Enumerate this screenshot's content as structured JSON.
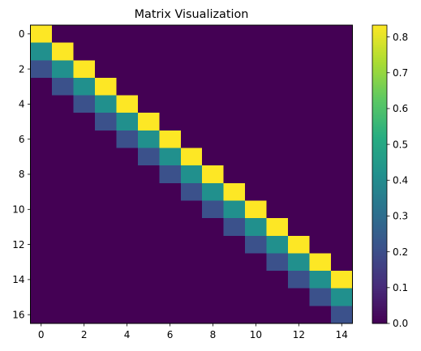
{
  "chart_data": {
    "type": "heatmap",
    "title": "Matrix Visualization",
    "xlabel": "",
    "ylabel": "",
    "colormap": "viridis",
    "xlim": [
      -0.5,
      14.5
    ],
    "ylim": [
      16.5,
      -0.5
    ],
    "x_ticks": [
      0,
      2,
      4,
      6,
      8,
      10,
      12,
      14
    ],
    "y_ticks": [
      0,
      2,
      4,
      6,
      8,
      10,
      12,
      14,
      16
    ],
    "colorbar": {
      "range": [
        0.0,
        0.833
      ],
      "ticks": [
        0.0,
        0.1,
        0.2,
        0.3,
        0.4,
        0.5,
        0.6,
        0.7,
        0.8
      ],
      "tick_labels": [
        "0.0",
        "0.1",
        "0.2",
        "0.3",
        "0.4",
        "0.5",
        "0.6",
        "0.7",
        "0.8"
      ]
    },
    "rows": 17,
    "cols": 15,
    "matrix": [
      [
        0.833,
        0,
        0,
        0,
        0,
        0,
        0,
        0,
        0,
        0,
        0,
        0,
        0,
        0,
        0
      ],
      [
        0.417,
        0.833,
        0,
        0,
        0,
        0,
        0,
        0,
        0,
        0,
        0,
        0,
        0,
        0,
        0
      ],
      [
        0.208,
        0.417,
        0.833,
        0,
        0,
        0,
        0,
        0,
        0,
        0,
        0,
        0,
        0,
        0,
        0
      ],
      [
        0,
        0.208,
        0.417,
        0.833,
        0,
        0,
        0,
        0,
        0,
        0,
        0,
        0,
        0,
        0,
        0
      ],
      [
        0,
        0,
        0.208,
        0.417,
        0.833,
        0,
        0,
        0,
        0,
        0,
        0,
        0,
        0,
        0,
        0
      ],
      [
        0,
        0,
        0,
        0.208,
        0.417,
        0.833,
        0,
        0,
        0,
        0,
        0,
        0,
        0,
        0,
        0
      ],
      [
        0,
        0,
        0,
        0,
        0.208,
        0.417,
        0.833,
        0,
        0,
        0,
        0,
        0,
        0,
        0,
        0
      ],
      [
        0,
        0,
        0,
        0,
        0,
        0.208,
        0.417,
        0.833,
        0,
        0,
        0,
        0,
        0,
        0,
        0
      ],
      [
        0,
        0,
        0,
        0,
        0,
        0,
        0.208,
        0.417,
        0.833,
        0,
        0,
        0,
        0,
        0,
        0
      ],
      [
        0,
        0,
        0,
        0,
        0,
        0,
        0,
        0.208,
        0.417,
        0.833,
        0,
        0,
        0,
        0,
        0
      ],
      [
        0,
        0,
        0,
        0,
        0,
        0,
        0,
        0,
        0.208,
        0.417,
        0.833,
        0,
        0,
        0,
        0
      ],
      [
        0,
        0,
        0,
        0,
        0,
        0,
        0,
        0,
        0,
        0.208,
        0.417,
        0.833,
        0,
        0,
        0
      ],
      [
        0,
        0,
        0,
        0,
        0,
        0,
        0,
        0,
        0,
        0,
        0.208,
        0.417,
        0.833,
        0,
        0
      ],
      [
        0,
        0,
        0,
        0,
        0,
        0,
        0,
        0,
        0,
        0,
        0,
        0.208,
        0.417,
        0.833,
        0
      ],
      [
        0,
        0,
        0,
        0,
        0,
        0,
        0,
        0,
        0,
        0,
        0,
        0,
        0.208,
        0.417,
        0.833
      ],
      [
        0,
        0,
        0,
        0,
        0,
        0,
        0,
        0,
        0,
        0,
        0,
        0,
        0,
        0.208,
        0.417
      ],
      [
        0,
        0,
        0,
        0,
        0,
        0,
        0,
        0,
        0,
        0,
        0,
        0,
        0,
        0,
        0.208
      ]
    ]
  }
}
